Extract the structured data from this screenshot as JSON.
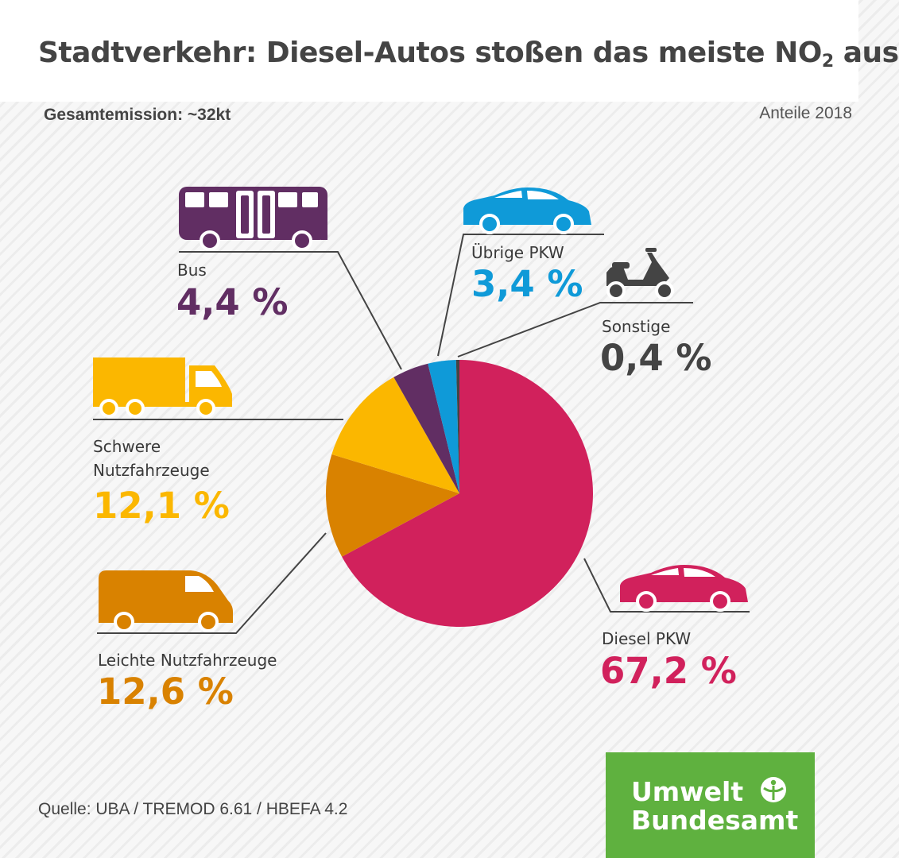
{
  "header": {
    "title_main": "Stadtverkehr: Diesel-Autos stoßen das meiste NO",
    "title_sub": "2",
    "title_end": " aus"
  },
  "total_label": "Gesamtemission: ~32kt",
  "year_label": "Anteile 2018",
  "source": "Quelle: UBA / TREMOD 6.61 / HBEFA 4.2",
  "logo": {
    "line1": "Umwelt",
    "line2": "Bundesamt"
  },
  "colors": {
    "diesel_pkw": "#d1215c",
    "leichte": "#d98200",
    "schwere": "#fbb700",
    "bus": "#612e63",
    "uebrige_pkw": "#0f9ad8",
    "sonstige": "#444444"
  },
  "icons": [
    "bus-icon",
    "car-icon",
    "scooter-icon",
    "truck-icon",
    "van-icon",
    "car-icon",
    "leaf-person-icon"
  ],
  "chart_data": {
    "type": "pie",
    "title": "Stadtverkehr: Diesel-Autos stoßen das meiste NO2 aus",
    "labels": [
      "Diesel PKW",
      "Leichte Nutzfahrzeuge",
      "Schwere Nutzfahrzeuge",
      "Bus",
      "Übrige PKW",
      "Sonstige"
    ],
    "values": [
      67.2,
      12.6,
      12.1,
      4.4,
      3.4,
      0.4
    ],
    "value_labels": [
      "67,2 %",
      "12,6 %",
      "12,1 %",
      "4,4 %",
      "3,4 %",
      "0,4 %"
    ],
    "unit": "%"
  }
}
